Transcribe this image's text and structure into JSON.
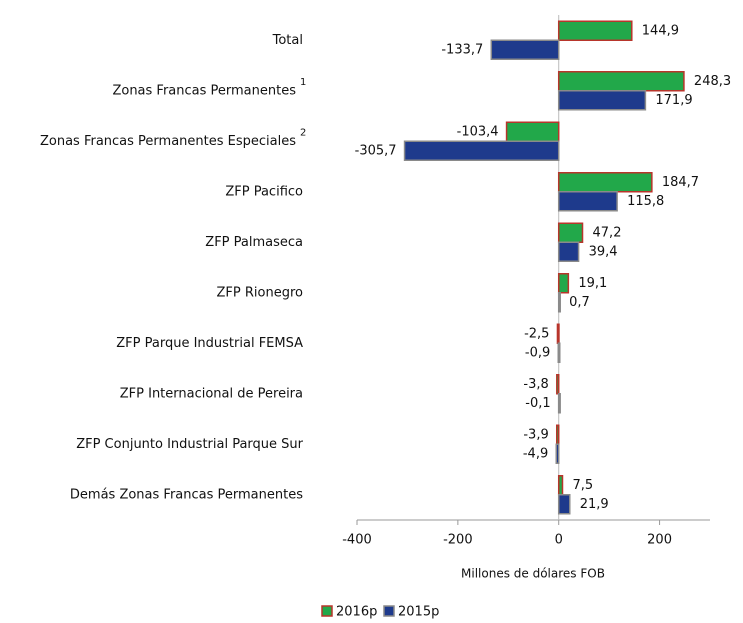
{
  "chart_data": {
    "type": "bar",
    "orientation": "horizontal",
    "categories": [
      "Total",
      "Zonas Francas Permanentes",
      "Zonas Francas Permanentes Especiales",
      "ZFP Pacifico",
      "ZFP Palmaseca",
      "ZFP Rionegro",
      "ZFP Parque Industrial FEMSA",
      "ZFP Internacional de Pereira",
      "ZFP Conjunto Industrial Parque Sur",
      "Demás Zonas Francas Permanentes"
    ],
    "category_notes": [
      null,
      "1",
      "2",
      null,
      null,
      null,
      null,
      null,
      null,
      null
    ],
    "series": [
      {
        "name": "2016p",
        "color": "#22a84a",
        "border": "#b8352b",
        "values": [
          144.9,
          248.3,
          -103.4,
          184.7,
          47.2,
          19.1,
          -2.5,
          -3.8,
          -3.9,
          7.5
        ],
        "value_labels": [
          "144,9",
          "248,3",
          "-103,4",
          "184,7",
          "47,2",
          "19,1",
          "-2,5",
          "-3,8",
          "-3,9",
          "7,5"
        ]
      },
      {
        "name": "2015p",
        "color": "#1e3a8c",
        "border": "#8a8a8a",
        "values": [
          -133.7,
          171.9,
          -305.7,
          115.8,
          39.4,
          0.7,
          -0.9,
          -0.1,
          -4.9,
          21.9
        ],
        "value_labels": [
          "-133,7",
          "171,9",
          "-305,7",
          "115,8",
          "39,4",
          "0,7",
          "-0,9",
          "-0,1",
          "-4,9",
          "21,9"
        ]
      }
    ],
    "xlim": [
      -400,
      300
    ],
    "xticks": [
      -400,
      -200,
      0,
      200
    ],
    "x_label": "Millones de dólares FOB",
    "legend": "bottom"
  }
}
